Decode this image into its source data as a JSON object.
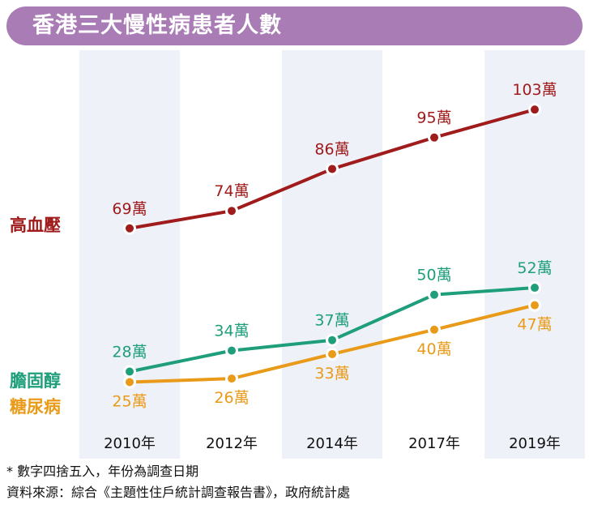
{
  "header": {
    "title": "香港三大慢性病患者人數"
  },
  "colors": {
    "title_bg": "#a97cb6",
    "band": "#eef2f8",
    "hypertension": "#a01b1b",
    "hyperlipidemia": "#1e9e7a",
    "diabetes": "#e99a19"
  },
  "chart_data": {
    "type": "line",
    "title": "香港三大慢性病患者人數",
    "x": [
      "2010年",
      "2012年",
      "2014年",
      "2017年",
      "2019年"
    ],
    "series": [
      {
        "name": "高血壓",
        "values": [
          69,
          74,
          86,
          95,
          103
        ],
        "labels": [
          "69萬",
          "74萬",
          "86萬",
          "95萬",
          "103萬"
        ],
        "color": "#a01b1b"
      },
      {
        "name": "膽固醇",
        "values": [
          28,
          34,
          37,
          50,
          52
        ],
        "labels": [
          "28萬",
          "34萬",
          "37萬",
          "50萬",
          "52萬"
        ],
        "color": "#1e9e7a"
      },
      {
        "name": "糖尿病",
        "values": [
          25,
          26,
          33,
          40,
          47
        ],
        "labels": [
          "25萬",
          "26萬",
          "33萬",
          "40萬",
          "47萬"
        ],
        "color": "#e99a19"
      }
    ],
    "ylim": [
      20,
      110
    ],
    "grid": false,
    "legend": "left"
  },
  "footnotes": {
    "note": "* 數字四捨五入，年份為調查日期",
    "source": "資料來源：綜合《主題性住戶統計調查報告書》，政府統計處"
  }
}
